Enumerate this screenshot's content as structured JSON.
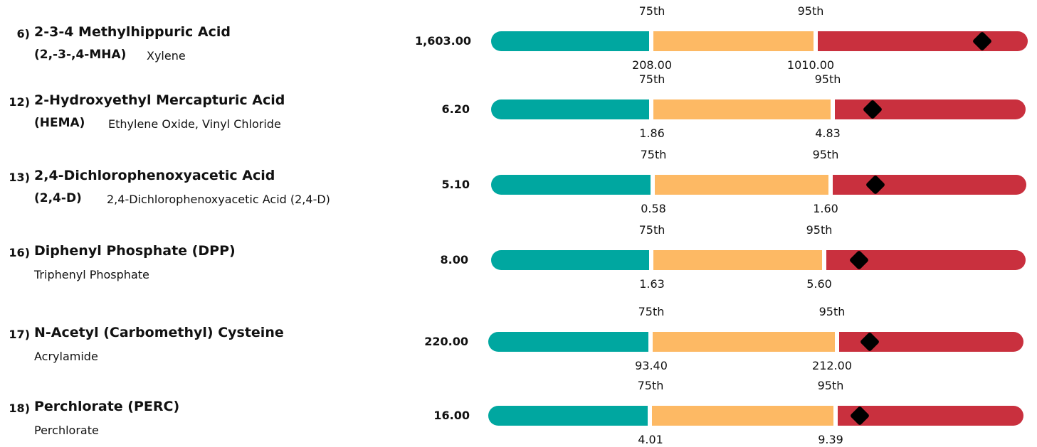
{
  "chart_data": {
    "type": "bar",
    "orientation": "horizontal-range",
    "segment_colors": {
      "low": "#00a7a0",
      "mid": "#fdb964",
      "high": "#c9303e"
    },
    "marker_color": "#000000",
    "percentile_labels": {
      "p75": "75th",
      "p95": "95th"
    },
    "items": [
      {
        "num": "6)",
        "name": "2-3-4 Methylhippuric Acid",
        "abbr": "(2,-3-,4-MHA)",
        "sub": "Xylene",
        "result_label": "1,603.00",
        "result": 1603.0,
        "p75_label": "208.00",
        "p75": 208.0,
        "p95_label": "1010.00",
        "p95": 1010.0
      },
      {
        "num": "12)",
        "name": "2-Hydroxyethyl Mercapturic Acid",
        "abbr": "(HEMA)",
        "sub": "Ethylene Oxide, Vinyl Chloride",
        "result_label": "6.20",
        "result": 6.2,
        "p75_label": "1.86",
        "p75": 1.86,
        "p95_label": "4.83",
        "p95": 4.83
      },
      {
        "num": "13)",
        "name": "2,4-Dichlorophenoxyacetic Acid",
        "abbr": "(2,4-D)",
        "sub": "2,4-Dichlorophenoxyacetic Acid (2,4-D)",
        "result_label": "5.10",
        "result": 5.1,
        "p75_label": "0.58",
        "p75": 0.58,
        "p95_label": "1.60",
        "p95": 1.6
      },
      {
        "num": "16)",
        "name": "Diphenyl Phosphate (DPP)",
        "abbr": "",
        "sub": "Triphenyl Phosphate",
        "result_label": "8.00",
        "result": 8.0,
        "p75_label": "1.63",
        "p75": 1.63,
        "p95_label": "5.60",
        "p95": 5.6
      },
      {
        "num": "17)",
        "name": "N-Acetyl (Carbomethyl) Cysteine",
        "abbr": "",
        "sub": "Acrylamide",
        "result_label": "220.00",
        "result": 220.0,
        "p75_label": "93.40",
        "p75": 93.4,
        "p95_label": "212.00",
        "p95": 212.0
      },
      {
        "num": "18)",
        "name": "Perchlorate (PERC)",
        "abbr": "",
        "sub": "Perchlorate",
        "result_label": "16.00",
        "result": 16.0,
        "p75_label": "4.01",
        "p75": 4.01,
        "p95_label": "9.39",
        "p95": 9.39
      }
    ]
  }
}
